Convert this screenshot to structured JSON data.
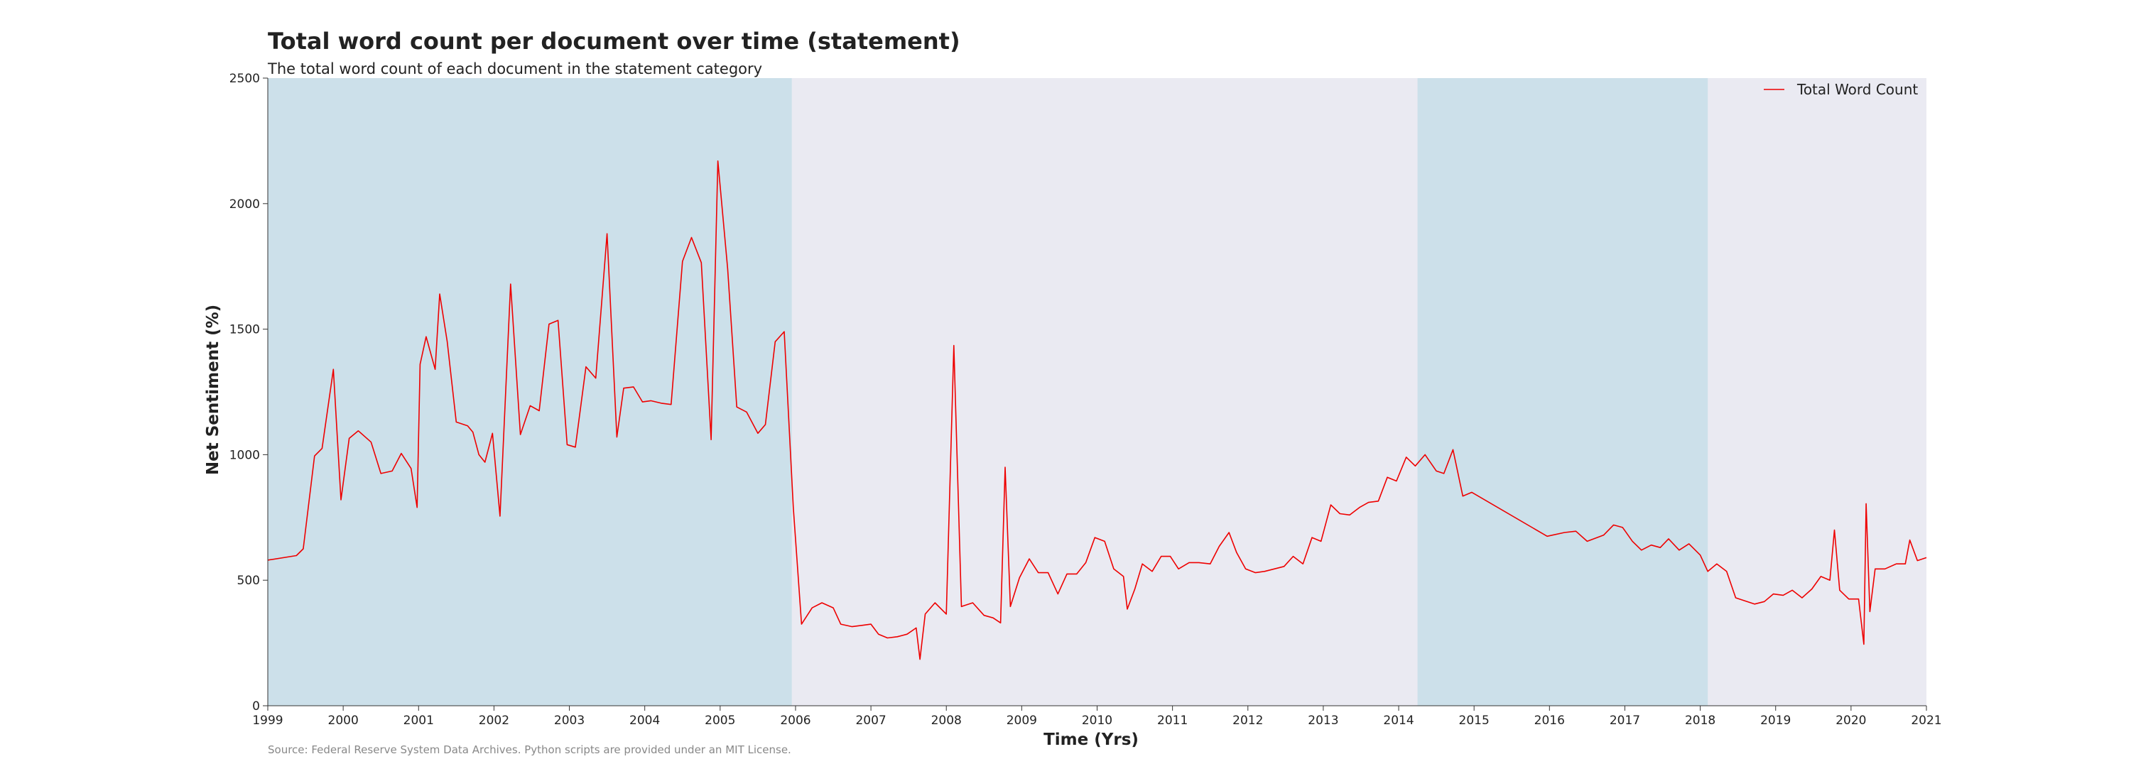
{
  "chart_data": {
    "type": "line",
    "title": "Total word count per document over time (statement)",
    "subtitle": "The total word count of each document in the statement category",
    "xlabel": "Time (Yrs)",
    "ylabel": "Net Sentiment (%)",
    "source": "Source: Federal Reserve System Data Archives. Python scripts are provided under an MIT License.",
    "xlim": [
      1999,
      2021
    ],
    "ylim": [
      0,
      2500
    ],
    "x_ticks": [
      "1999",
      "2000",
      "2001",
      "2002",
      "2003",
      "2004",
      "2005",
      "2006",
      "2007",
      "2008",
      "2009",
      "2010",
      "2011",
      "2012",
      "2013",
      "2014",
      "2015",
      "2016",
      "2017",
      "2018",
      "2019",
      "2020",
      "2021"
    ],
    "y_ticks": [
      "0",
      "500",
      "1000",
      "1500",
      "2000",
      "2500"
    ],
    "grid": false,
    "legend_position": "top-right",
    "colors": {
      "plot_background": "#eaeaf2",
      "shaded_band": "#cce0ea",
      "line": "#ee0000",
      "text": "#222222",
      "source_text": "#888888"
    },
    "shaded_periods": [
      {
        "start": 1999.0,
        "end": 2005.95
      },
      {
        "start": 2014.25,
        "end": 2018.1
      }
    ],
    "series": [
      {
        "name": "Total Word Count",
        "x": [
          1999.0,
          1999.38,
          1999.47,
          1999.62,
          1999.72,
          1999.87,
          1999.97,
          2000.08,
          2000.2,
          2000.37,
          2000.5,
          2000.65,
          2000.77,
          2000.9,
          2000.98,
          2001.02,
          2001.1,
          2001.22,
          2001.28,
          2001.38,
          2001.5,
          2001.65,
          2001.72,
          2001.8,
          2001.88,
          2001.98,
          2002.08,
          2002.22,
          2002.35,
          2002.48,
          2002.6,
          2002.73,
          2002.85,
          2002.97,
          2003.08,
          2003.22,
          2003.35,
          2003.5,
          2003.63,
          2003.72,
          2003.85,
          2003.97,
          2004.08,
          2004.22,
          2004.35,
          2004.5,
          2004.62,
          2004.75,
          2004.88,
          2004.97,
          2005.1,
          2005.22,
          2005.35,
          2005.5,
          2005.6,
          2005.73,
          2005.85,
          2005.97,
          2006.08,
          2006.22,
          2006.35,
          2006.5,
          2006.6,
          2006.75,
          2006.88,
          2007.0,
          2007.1,
          2007.22,
          2007.35,
          2007.48,
          2007.6,
          2007.65,
          2007.72,
          2007.85,
          2008.0,
          2008.1,
          2008.2,
          2008.35,
          2008.5,
          2008.62,
          2008.72,
          2008.78,
          2008.85,
          2008.97,
          2009.1,
          2009.22,
          2009.35,
          2009.48,
          2009.6,
          2009.73,
          2009.85,
          2009.97,
          2010.1,
          2010.22,
          2010.35,
          2010.4,
          2010.5,
          2010.6,
          2010.73,
          2010.85,
          2010.97,
          2011.08,
          2011.22,
          2011.35,
          2011.5,
          2011.62,
          2011.75,
          2011.85,
          2011.97,
          2012.1,
          2012.22,
          2012.35,
          2012.48,
          2012.6,
          2012.73,
          2012.85,
          2012.97,
          2013.1,
          2013.22,
          2013.35,
          2013.48,
          2013.6,
          2013.73,
          2013.85,
          2013.97,
          2014.1,
          2014.22,
          2014.35,
          2014.5,
          2014.6,
          2014.72,
          2014.85,
          2014.97,
          2015.97,
          2016.2,
          2016.35,
          2016.5,
          2016.72,
          2016.85,
          2016.97,
          2017.1,
          2017.22,
          2017.35,
          2017.47,
          2017.58,
          2017.72,
          2017.85,
          2018.0,
          2018.1,
          2018.22,
          2018.35,
          2018.47,
          2018.72,
          2018.85,
          2018.97,
          2019.1,
          2019.22,
          2019.35,
          2019.48,
          2019.6,
          2019.72,
          2019.78,
          2019.85,
          2019.97,
          2020.1,
          2020.17,
          2020.2,
          2020.25,
          2020.32,
          2020.45,
          2020.6,
          2020.72,
          2020.78,
          2020.88,
          2021.0
        ],
        "values": [
          580,
          598,
          625,
          995,
          1025,
          1340,
          820,
          1065,
          1095,
          1050,
          925,
          935,
          1005,
          945,
          790,
          1360,
          1470,
          1340,
          1640,
          1450,
          1130,
          1115,
          1090,
          1000,
          970,
          1085,
          755,
          1680,
          1080,
          1195,
          1175,
          1520,
          1535,
          1040,
          1030,
          1350,
          1305,
          1880,
          1070,
          1265,
          1270,
          1210,
          1215,
          1205,
          1200,
          1770,
          1865,
          1765,
          1060,
          2170,
          1740,
          1190,
          1170,
          1085,
          1120,
          1450,
          1490,
          790,
          325,
          390,
          410,
          390,
          325,
          315,
          320,
          325,
          285,
          270,
          275,
          285,
          310,
          185,
          365,
          410,
          365,
          1435,
          395,
          410,
          360,
          350,
          330,
          950,
          395,
          510,
          585,
          530,
          530,
          445,
          525,
          525,
          570,
          670,
          655,
          545,
          515,
          385,
          465,
          565,
          535,
          595,
          595,
          545,
          570,
          570,
          565,
          635,
          690,
          610,
          545,
          530,
          535,
          545,
          555,
          595,
          565,
          670,
          655,
          800,
          765,
          760,
          790,
          810,
          815,
          910,
          895,
          990,
          955,
          1000,
          935,
          925,
          1020,
          835,
          850,
          675,
          690,
          695,
          655,
          680,
          720,
          710,
          655,
          620,
          640,
          630,
          665,
          620,
          645,
          600,
          535,
          565,
          535,
          430,
          405,
          415,
          445,
          440,
          460,
          430,
          465,
          515,
          500,
          700,
          460,
          425,
          425,
          245,
          805,
          375,
          545,
          545,
          565,
          565,
          660,
          578,
          590
        ]
      }
    ]
  }
}
